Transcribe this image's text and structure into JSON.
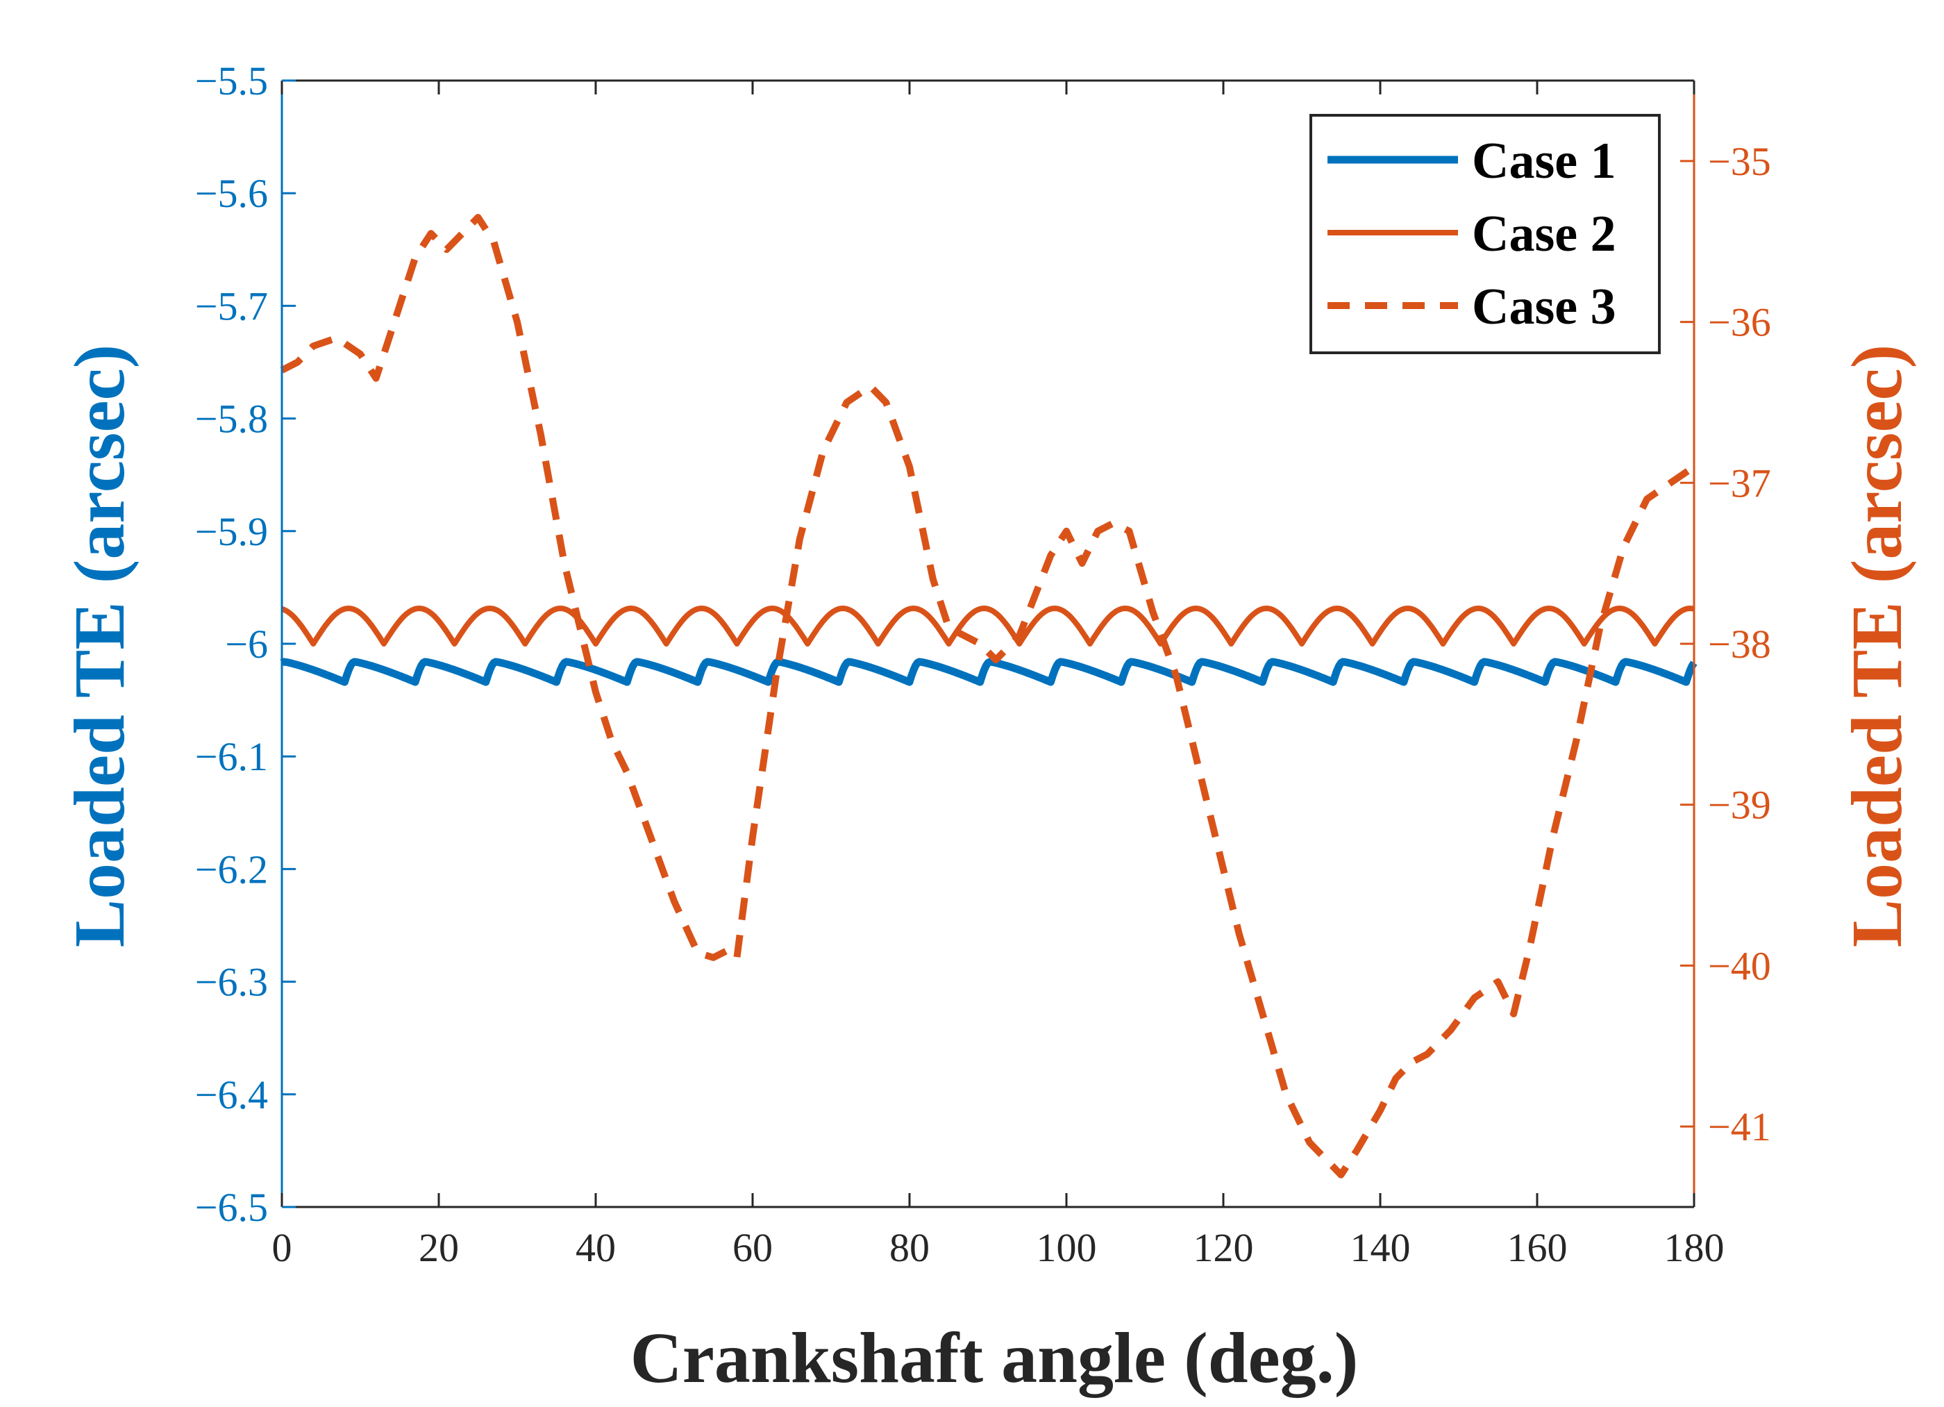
{
  "chart_data": {
    "type": "line",
    "title": "",
    "xlabel": "Crankshaft angle (deg.)",
    "ylabel_left": "Loaded TE (arcsec)",
    "ylabel_right": "Loaded TE (arcsec)",
    "xlim": [
      0,
      180
    ],
    "ylim_left": [
      -6.5,
      -5.5
    ],
    "ylim_right": [
      -41.5,
      -34.5
    ],
    "x_ticks": [
      "0",
      "20",
      "40",
      "60",
      "80",
      "100",
      "120",
      "140",
      "160",
      "180"
    ],
    "x_tick_values": [
      0,
      20,
      40,
      60,
      80,
      100,
      120,
      140,
      160,
      180
    ],
    "y_left_ticks": [
      "−5.5",
      "−5.6",
      "−5.7",
      "−5.8",
      "−5.9",
      "−6",
      "−6.1",
      "−6.2",
      "−6.3",
      "−6.4",
      "−6.5"
    ],
    "y_left_tick_values": [
      -5.5,
      -5.6,
      -5.7,
      -5.8,
      -5.9,
      -6.0,
      -6.1,
      -6.2,
      -6.3,
      -6.4,
      -6.5
    ],
    "y_right_ticks": [
      "−35",
      "−36",
      "−37",
      "−38",
      "−39",
      "−40",
      "−41"
    ],
    "y_right_tick_values": [
      -35,
      -36,
      -37,
      -38,
      -39,
      -40,
      -41
    ],
    "grid": false,
    "legend_position": "top-right",
    "colors": {
      "left_axis": "#0072BD",
      "right_axis": "#D95319",
      "frame": "#262626"
    },
    "series": [
      {
        "name": "Case 1",
        "axis": "left",
        "color": "#0072BD",
        "style": "solid",
        "generator": "sawtooth",
        "period": 9,
        "low": -6.034,
        "high": -6.016,
        "phase": -1.0
      },
      {
        "name": "Case 2",
        "axis": "right",
        "color": "#D95319",
        "style": "solid",
        "generator": "arches",
        "period": 9,
        "low": -38.0,
        "high": -37.78,
        "phase": 4.0
      },
      {
        "name": "Case 3",
        "axis": "right",
        "color": "#D95319",
        "style": "dashed",
        "x": [
          0,
          2,
          4,
          7,
          10,
          12,
          13,
          15,
          17,
          19,
          21,
          23,
          25,
          27,
          30,
          33,
          36,
          40,
          42,
          44,
          47,
          50,
          53,
          55,
          57,
          58,
          60,
          63,
          66,
          69,
          72,
          75,
          77,
          80,
          83,
          85,
          87,
          89,
          91,
          94,
          96,
          98,
          100,
          102,
          104,
          106,
          108,
          111,
          114,
          116,
          119,
          122,
          125,
          128,
          131,
          133,
          135,
          137,
          140,
          142,
          144,
          146,
          149,
          152,
          155,
          157,
          159,
          162,
          165,
          168,
          171,
          174,
          177,
          180
        ],
        "values": [
          -36.3,
          -36.25,
          -36.15,
          -36.1,
          -36.2,
          -36.35,
          -36.2,
          -35.9,
          -35.6,
          -35.45,
          -35.55,
          -35.45,
          -35.35,
          -35.5,
          -36.0,
          -36.7,
          -37.5,
          -38.3,
          -38.6,
          -38.8,
          -39.2,
          -39.6,
          -39.92,
          -39.95,
          -39.9,
          -39.95,
          -39.2,
          -38.2,
          -37.35,
          -36.8,
          -36.5,
          -36.4,
          -36.5,
          -36.9,
          -37.6,
          -37.9,
          -37.95,
          -38.0,
          -38.1,
          -37.95,
          -37.7,
          -37.45,
          -37.3,
          -37.5,
          -37.3,
          -37.25,
          -37.3,
          -37.8,
          -38.2,
          -38.6,
          -39.2,
          -39.8,
          -40.3,
          -40.8,
          -41.1,
          -41.2,
          -41.3,
          -41.15,
          -40.9,
          -40.7,
          -40.6,
          -40.55,
          -40.4,
          -40.2,
          -40.1,
          -40.3,
          -39.9,
          -39.2,
          -38.6,
          -37.9,
          -37.4,
          -37.1,
          -37.0,
          -36.9
        ]
      }
    ]
  }
}
